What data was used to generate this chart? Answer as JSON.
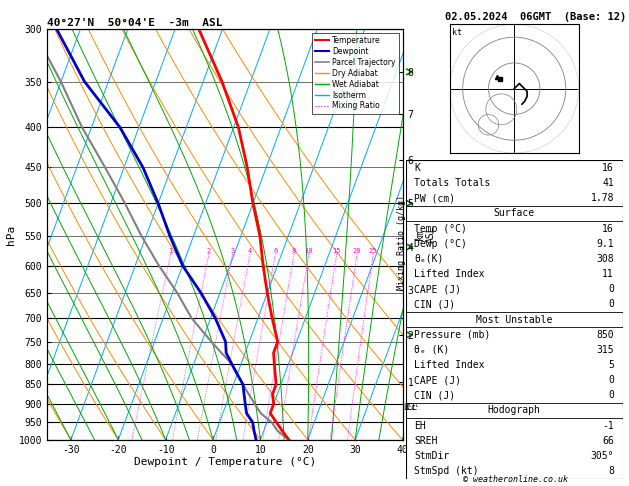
{
  "title_left": "40°27'N  50°04'E  -3m  ASL",
  "title_right": "02.05.2024  06GMT  (Base: 12)",
  "xlabel": "Dewpoint / Temperature (°C)",
  "ylabel_left": "hPa",
  "pressure_levels": [
    300,
    350,
    400,
    450,
    500,
    550,
    600,
    650,
    700,
    750,
    800,
    850,
    900,
    950,
    1000
  ],
  "temp_ticks": [
    -30,
    -20,
    -10,
    0,
    10,
    20,
    30,
    40
  ],
  "t_min": -35,
  "t_max": 40,
  "p_min": 300,
  "p_max": 1000,
  "skew_factor": 32,
  "sounding_temp": {
    "pressure": [
      1000,
      975,
      950,
      925,
      900,
      875,
      850,
      825,
      800,
      775,
      750,
      700,
      650,
      600,
      550,
      500,
      450,
      400,
      350,
      300
    ],
    "temp": [
      16,
      14,
      12,
      10,
      10,
      9,
      9,
      8,
      7,
      6,
      6,
      3,
      0,
      -3,
      -6,
      -10,
      -14,
      -19,
      -26,
      -35
    ]
  },
  "sounding_dewp": {
    "pressure": [
      1000,
      975,
      950,
      925,
      900,
      875,
      850,
      825,
      800,
      775,
      750,
      700,
      650,
      600,
      550,
      500,
      450,
      400,
      350,
      300
    ],
    "dewp": [
      9.1,
      8,
      7,
      5,
      4,
      3,
      2,
      0,
      -2,
      -4,
      -5,
      -9,
      -14,
      -20,
      -25,
      -30,
      -36,
      -44,
      -55,
      -65
    ]
  },
  "parcel_pressure": [
    1000,
    975,
    950,
    925,
    900,
    875,
    850,
    825,
    800,
    775,
    750,
    700,
    650,
    600,
    550,
    500,
    450,
    400,
    350,
    300
  ],
  "parcel_temp": [
    16,
    13,
    11,
    8,
    6,
    4,
    2,
    0,
    -2,
    -5,
    -8,
    -14,
    -19,
    -25,
    -31,
    -37,
    -44,
    -52,
    -60,
    -70
  ],
  "lcl_pressure": 910,
  "km_ticks": {
    "pressures": [
      340,
      385,
      440,
      500,
      568,
      645,
      735,
      845
    ],
    "km_values": [
      "8",
      "7",
      "6",
      "5",
      "4",
      "3",
      "2",
      "1"
    ]
  },
  "mixing_ratio_values": [
    1,
    2,
    3,
    4,
    6,
    8,
    10,
    15,
    20,
    25
  ],
  "info_table": {
    "K": "16",
    "Totals Totals": "41",
    "PW (cm)": "1.78",
    "Temp_C": "16",
    "Dewp_C": "9.1",
    "theta_e_K": "308",
    "Lifted_Index": "11",
    "CAPE_J": "0",
    "CIN_J": "0",
    "Pressure_mb": "850",
    "theta_e2_K": "315",
    "Lifted_Index2": "5",
    "CAPE2_J": "0",
    "CIN2_J": "0",
    "EH": "-1",
    "SREH": "66",
    "StmDir": "305°",
    "StmSpd_kt": "8"
  },
  "copyright": "© weatheronline.co.uk",
  "color_temp": "#ff0000",
  "color_dewp": "#0000cc",
  "color_parcel": "#808080",
  "color_dry_adiabat": "#ff8c00",
  "color_wet_adiabat": "#00aa00",
  "color_isotherm": "#00aaff",
  "color_mixing_ratio": "#ff00ff",
  "legend_labels": [
    "Temperature",
    "Dewpoint",
    "Parcel Trajectory",
    "Dry Adiabat",
    "Wet Adiabat",
    "Isotherm",
    "Mixing Ratio"
  ]
}
